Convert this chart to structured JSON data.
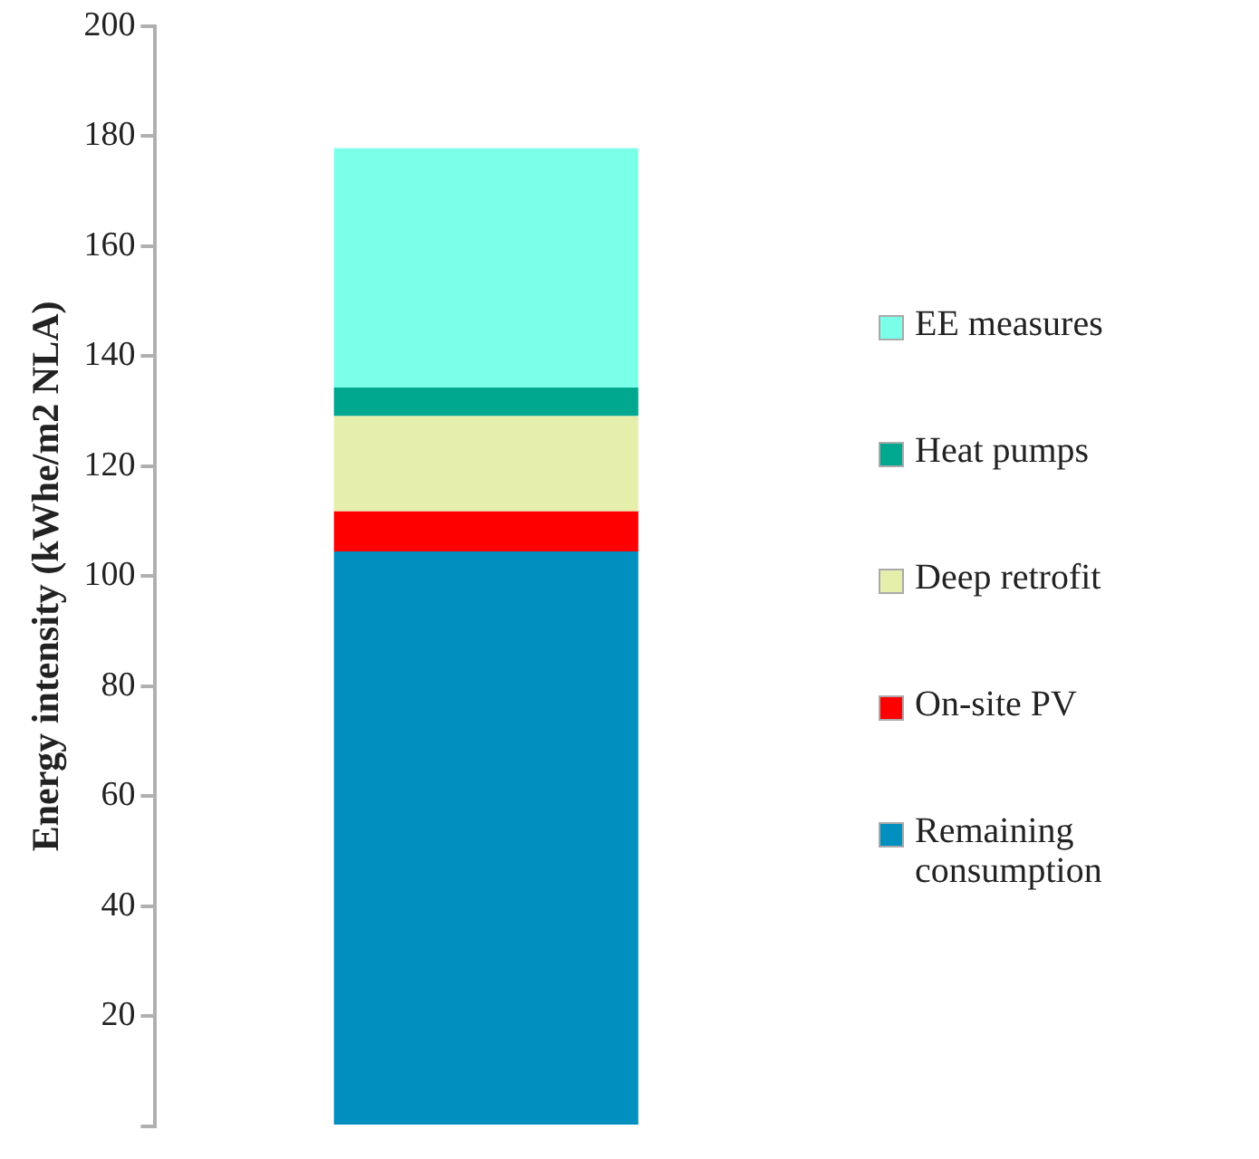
{
  "chart_data": {
    "type": "bar",
    "stacked": true,
    "ylabel": "Energy intensity (kWhe/m2 NLA)",
    "categories": [
      null
    ],
    "series": [
      {
        "name": "Remaining consumption",
        "color": "#008fbf",
        "values": [
          104.5
        ]
      },
      {
        "name": "On-site PV",
        "color": "#ff0000",
        "values": [
          7.3
        ]
      },
      {
        "name": "Deep retrofit",
        "color": "#e6eeac",
        "values": [
          17.3
        ]
      },
      {
        "name": "Heat pumps",
        "color": "#00a88f",
        "values": [
          5.2
        ]
      },
      {
        "name": "EE measures",
        "color": "#7affe8",
        "values": [
          43.5
        ]
      }
    ],
    "ylim": [
      0,
      200
    ],
    "yticks": [
      {
        "value": 0,
        "label": null
      },
      20,
      40,
      60,
      80,
      100,
      120,
      140,
      160,
      180,
      200
    ],
    "grid": false,
    "legend": "right"
  }
}
